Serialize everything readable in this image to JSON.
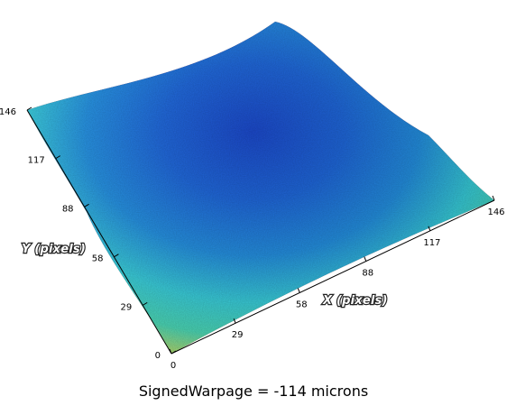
{
  "chart_data": {
    "type": "surface",
    "xlabel": "X (pixels)",
    "ylabel": "Y (pixels)",
    "x_ticks": [
      0,
      29,
      58,
      88,
      117,
      146
    ],
    "y_ticks": [
      0,
      29,
      58,
      88,
      117,
      146
    ],
    "xlim": [
      0,
      146
    ],
    "ylim": [
      0,
      146
    ],
    "colormap": [
      "#1040c8",
      "#1c8ce0",
      "#34cfdc",
      "#48dbb8",
      "#e8de3a",
      "#eb9a22",
      "#d62716"
    ],
    "caption": "SignedWarpage = -114 microns",
    "shape": "bowl (corners high, center low)"
  }
}
